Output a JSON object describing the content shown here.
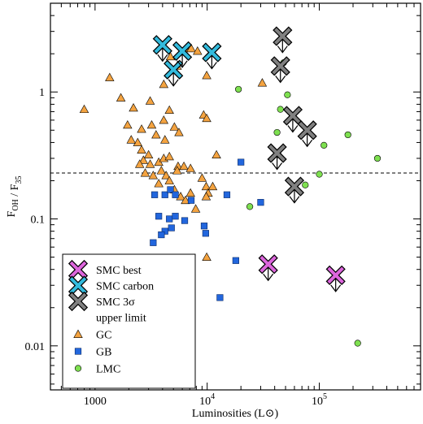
{
  "chart_data": {
    "type": "scatter",
    "xlabel": "Luminosities (L⊙)",
    "ylabel": "F_OH / F_35",
    "xscale": "log",
    "yscale": "log",
    "xlim": [
      400,
      800000
    ],
    "ylim": [
      0.0045,
      5.0
    ],
    "x_ticks": [
      {
        "value": 1000,
        "label": "1000"
      },
      {
        "value": 10000,
        "label": "10^4"
      },
      {
        "value": 100000,
        "label": "10^5"
      }
    ],
    "y_ticks": [
      {
        "value": 0.01,
        "label": "0.01"
      },
      {
        "value": 0.1,
        "label": "0.1"
      },
      {
        "value": 1,
        "label": "1"
      }
    ],
    "reference_line": {
      "y": 0.23,
      "style": "dashed"
    },
    "grid": false,
    "legend_position": "bottom-left",
    "legend": [
      {
        "label": "SMC best",
        "marker": "cross-arrow",
        "color": "#dd66dd"
      },
      {
        "label": "SMC carbon",
        "marker": "cross-arrow",
        "color": "#33bbdd"
      },
      {
        "label": "SMC 3σ",
        "marker": "cross-arrow",
        "color": "#808080"
      },
      {
        "label": "upper limit",
        "marker": "none",
        "color": ""
      },
      {
        "label": "GC",
        "marker": "triangle",
        "color": "#f4a340"
      },
      {
        "label": "GB",
        "marker": "square",
        "color": "#2266dd"
      },
      {
        "label": "LMC",
        "marker": "circle",
        "color": "#7ee050"
      }
    ],
    "series": [
      {
        "name": "SMC best",
        "marker": "cross-arrow",
        "color": "#dd66dd",
        "upper_limit": true,
        "points": [
          [
            35000,
            0.044
          ],
          [
            140000,
            0.036
          ]
        ]
      },
      {
        "name": "SMC carbon",
        "marker": "cross-arrow",
        "color": "#33bbdd",
        "upper_limit": true,
        "points": [
          [
            4000,
            2.35
          ],
          [
            5000,
            1.5
          ],
          [
            6000,
            2.1
          ],
          [
            11000,
            2.05
          ]
        ]
      },
      {
        "name": "SMC 3σ",
        "marker": "cross-arrow",
        "color": "#808080",
        "upper_limit": true,
        "points": [
          [
            47000,
            2.75
          ],
          [
            45000,
            1.6
          ],
          [
            58000,
            0.65
          ],
          [
            78000,
            0.5
          ],
          [
            42000,
            0.33
          ],
          [
            60000,
            0.18
          ]
        ]
      },
      {
        "name": "GC",
        "marker": "triangle",
        "color": "#f4a340",
        "points": [
          [
            1350,
            1.3
          ],
          [
            1700,
            0.9
          ],
          [
            2200,
            0.75
          ],
          [
            3100,
            0.85
          ],
          [
            4100,
            1.15
          ],
          [
            4700,
            1.9
          ],
          [
            5400,
            1.6
          ],
          [
            6800,
            2.2
          ],
          [
            7200,
            2.2
          ],
          [
            8200,
            2.1
          ],
          [
            9900,
            1.35
          ],
          [
            9300,
            0.66
          ],
          [
            9900,
            0.62
          ],
          [
            5100,
            0.53
          ],
          [
            5600,
            0.48
          ],
          [
            2600,
            0.51
          ],
          [
            3200,
            0.55
          ],
          [
            1950,
            0.55
          ],
          [
            4100,
            0.6
          ],
          [
            4600,
            0.72
          ],
          [
            3500,
            0.46
          ],
          [
            4200,
            0.42
          ],
          [
            2400,
            0.4
          ],
          [
            2100,
            0.42
          ],
          [
            2600,
            0.35
          ],
          [
            3000,
            0.32
          ],
          [
            2700,
            0.29
          ],
          [
            2500,
            0.27
          ],
          [
            3100,
            0.27
          ],
          [
            3700,
            0.28
          ],
          [
            4100,
            0.3
          ],
          [
            4600,
            0.31
          ],
          [
            5500,
            0.26
          ],
          [
            6200,
            0.26
          ],
          [
            2800,
            0.23
          ],
          [
            3300,
            0.22
          ],
          [
            3900,
            0.24
          ],
          [
            4300,
            0.22
          ],
          [
            5400,
            0.24
          ],
          [
            7100,
            0.25
          ],
          [
            3700,
            0.19
          ],
          [
            4600,
            0.2
          ],
          [
            5100,
            0.17
          ],
          [
            5800,
            0.15
          ],
          [
            6400,
            0.14
          ],
          [
            7100,
            0.16
          ],
          [
            9000,
            0.21
          ],
          [
            9800,
            0.18
          ],
          [
            10200,
            0.16
          ],
          [
            11200,
            0.18
          ],
          [
            9800,
            0.15
          ],
          [
            12100,
            0.32
          ],
          [
            9900,
            0.05
          ],
          [
            7900,
            0.12
          ],
          [
            800,
            0.73
          ],
          [
            31000,
            1.18
          ]
        ]
      },
      {
        "name": "GB",
        "marker": "square",
        "color": "#2266dd",
        "points": [
          [
            3400,
            0.155
          ],
          [
            4200,
            0.155
          ],
          [
            4700,
            0.17
          ],
          [
            5200,
            0.155
          ],
          [
            7200,
            0.14
          ],
          [
            15000,
            0.155
          ],
          [
            20000,
            0.28
          ],
          [
            3700,
            0.105
          ],
          [
            4600,
            0.1
          ],
          [
            5200,
            0.105
          ],
          [
            6300,
            0.097
          ],
          [
            4200,
            0.08
          ],
          [
            4800,
            0.085
          ],
          [
            3300,
            0.065
          ],
          [
            3900,
            0.075
          ],
          [
            9400,
            0.088
          ],
          [
            9700,
            0.077
          ],
          [
            18000,
            0.047
          ],
          [
            13000,
            0.024
          ],
          [
            30000,
            0.135
          ]
        ]
      },
      {
        "name": "LMC",
        "marker": "circle",
        "color": "#7ee050",
        "points": [
          [
            19000,
            1.05
          ],
          [
            48000,
            1.7
          ],
          [
            52000,
            0.95
          ],
          [
            45000,
            0.73
          ],
          [
            42000,
            0.48
          ],
          [
            180000,
            0.46
          ],
          [
            110000,
            0.38
          ],
          [
            43000,
            0.32
          ],
          [
            330000,
            0.3
          ],
          [
            24000,
            0.125
          ],
          [
            100000,
            0.225
          ],
          [
            75000,
            0.185
          ],
          [
            220000,
            0.0105
          ]
        ]
      }
    ]
  }
}
